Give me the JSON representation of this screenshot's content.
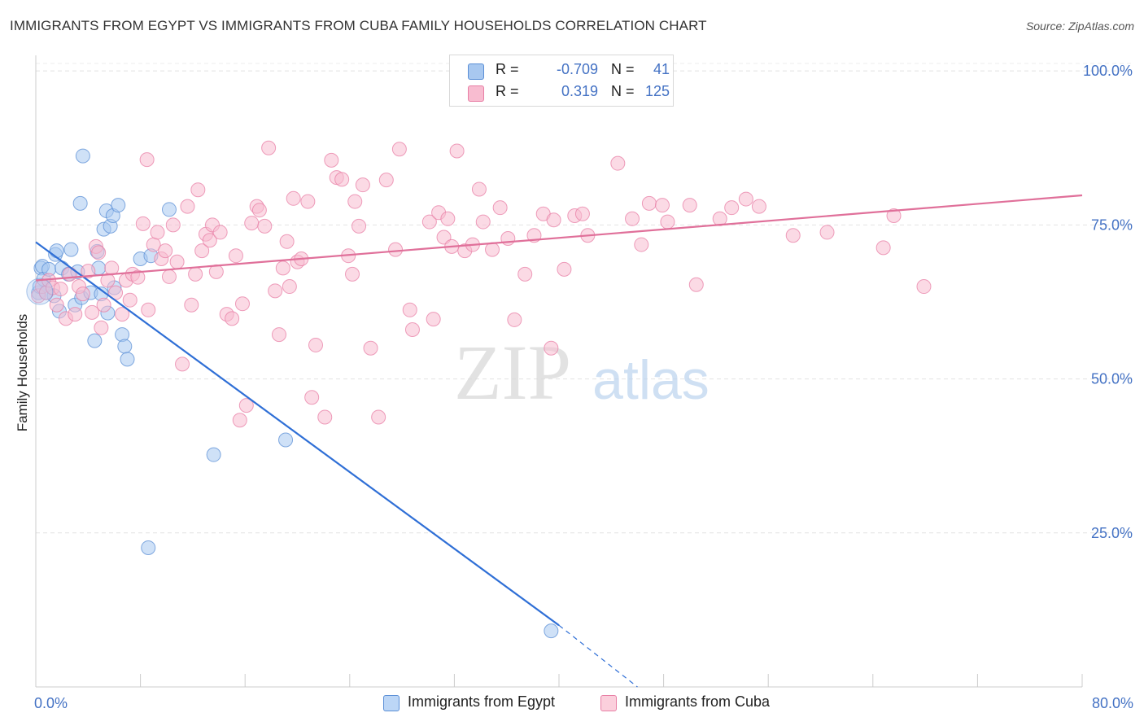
{
  "header": {
    "title": "IMMIGRANTS FROM EGYPT VS IMMIGRANTS FROM CUBA FAMILY HOUSEHOLDS CORRELATION CHART",
    "source": "Source: ZipAtlas.com"
  },
  "watermark": {
    "zip": "ZIP",
    "atlas": "atlas"
  },
  "legend": {
    "rows": [
      {
        "r_label": "R =",
        "r_value": "-0.709",
        "n_label": "N =",
        "n_value": "41",
        "color": "#a8c8f0",
        "border": "#5b8fd6"
      },
      {
        "r_label": "R =",
        "r_value": "0.319",
        "n_label": "N =",
        "n_value": "125",
        "color": "#f8bcd0",
        "border": "#e87fa5"
      }
    ],
    "bottom": [
      {
        "label": "Immigrants from Egypt",
        "color": "#bcd6f6",
        "border": "#5b8fd6"
      },
      {
        "label": "Immigrants from Cuba",
        "color": "#fbcfdc",
        "border": "#e87fa5"
      }
    ]
  },
  "chart_data": {
    "type": "scatter",
    "title": "IMMIGRANTS FROM EGYPT VS IMMIGRANTS FROM CUBA FAMILY HOUSEHOLDS CORRELATION CHART",
    "xlabel": "",
    "ylabel": "Family Households",
    "xlim": [
      0,
      80
    ],
    "ylim": [
      0,
      102
    ],
    "x_tick_labels": [
      "0.0%",
      "80.0%"
    ],
    "y_ticks": [
      25,
      50,
      75,
      100
    ],
    "y_tick_labels": [
      "25.0%",
      "50.0%",
      "75.0%",
      "100.0%"
    ],
    "grid": true,
    "legend_position": "top-center",
    "series": [
      {
        "name": "Immigrants from Egypt",
        "color": "#5b8fd6",
        "fill": "#a8c8f0",
        "points": [
          [
            0.2,
            64.0
          ],
          [
            0.3,
            65.0
          ],
          [
            0.4,
            68.0
          ],
          [
            0.5,
            68.3
          ],
          [
            0.6,
            66.2
          ],
          [
            0.8,
            64.0
          ],
          [
            1.0,
            67.8
          ],
          [
            1.4,
            63.5
          ],
          [
            1.5,
            70.2
          ],
          [
            1.6,
            70.8
          ],
          [
            1.8,
            61.0
          ],
          [
            2.0,
            68.0
          ],
          [
            2.5,
            67.0
          ],
          [
            2.7,
            71.0
          ],
          [
            3.0,
            62.0
          ],
          [
            3.2,
            67.4
          ],
          [
            3.4,
            78.5
          ],
          [
            3.5,
            63.2
          ],
          [
            3.6,
            86.2
          ],
          [
            4.2,
            64.0
          ],
          [
            4.5,
            56.2
          ],
          [
            4.7,
            70.7
          ],
          [
            4.8,
            68.0
          ],
          [
            5.0,
            63.8
          ],
          [
            5.2,
            74.3
          ],
          [
            5.4,
            77.3
          ],
          [
            5.5,
            60.7
          ],
          [
            5.7,
            74.8
          ],
          [
            5.9,
            76.5
          ],
          [
            6.0,
            64.8
          ],
          [
            6.3,
            78.2
          ],
          [
            6.6,
            57.2
          ],
          [
            6.8,
            55.3
          ],
          [
            7.0,
            53.2
          ],
          [
            8.0,
            69.5
          ],
          [
            8.6,
            22.6
          ],
          [
            8.8,
            70.0
          ],
          [
            10.2,
            77.5
          ],
          [
            13.6,
            37.7
          ],
          [
            19.1,
            40.1
          ],
          [
            39.4,
            9.1
          ]
        ]
      },
      {
        "name": "Immigrants from Cuba",
        "color": "#e87fa5",
        "fill": "#f8bcd0",
        "points": [
          [
            0.2,
            63.5
          ],
          [
            0.5,
            65.0
          ],
          [
            0.8,
            64.0
          ],
          [
            1.0,
            66.0
          ],
          [
            1.3,
            64.8
          ],
          [
            1.6,
            62.0
          ],
          [
            1.9,
            64.6
          ],
          [
            2.3,
            59.8
          ],
          [
            2.6,
            67.0
          ],
          [
            3.0,
            60.5
          ],
          [
            3.3,
            65.0
          ],
          [
            3.6,
            63.8
          ],
          [
            4.0,
            67.5
          ],
          [
            4.3,
            60.8
          ],
          [
            4.6,
            71.5
          ],
          [
            4.8,
            70.5
          ],
          [
            5.0,
            58.3
          ],
          [
            5.2,
            62.0
          ],
          [
            5.5,
            66.0
          ],
          [
            5.8,
            68.0
          ],
          [
            6.1,
            64.0
          ],
          [
            6.6,
            60.5
          ],
          [
            6.9,
            66.0
          ],
          [
            7.2,
            62.8
          ],
          [
            7.4,
            67.0
          ],
          [
            7.8,
            66.5
          ],
          [
            8.2,
            75.2
          ],
          [
            8.5,
            85.6
          ],
          [
            8.6,
            61.2
          ],
          [
            9.0,
            71.8
          ],
          [
            9.3,
            73.8
          ],
          [
            9.6,
            69.5
          ],
          [
            9.9,
            70.8
          ],
          [
            10.2,
            66.6
          ],
          [
            10.5,
            75.0
          ],
          [
            10.8,
            69.0
          ],
          [
            11.2,
            52.4
          ],
          [
            11.6,
            78.0
          ],
          [
            11.9,
            62.0
          ],
          [
            12.2,
            67.0
          ],
          [
            12.4,
            80.7
          ],
          [
            12.7,
            70.8
          ],
          [
            13.0,
            73.5
          ],
          [
            13.3,
            72.5
          ],
          [
            13.5,
            75.0
          ],
          [
            13.8,
            67.4
          ],
          [
            14.1,
            73.8
          ],
          [
            14.6,
            60.5
          ],
          [
            15.0,
            59.8
          ],
          [
            15.3,
            70.0
          ],
          [
            15.6,
            43.3
          ],
          [
            15.8,
            62.2
          ],
          [
            16.1,
            45.7
          ],
          [
            16.5,
            75.3
          ],
          [
            16.9,
            78.0
          ],
          [
            17.1,
            77.4
          ],
          [
            17.5,
            74.8
          ],
          [
            17.8,
            87.5
          ],
          [
            18.3,
            64.3
          ],
          [
            18.6,
            57.2
          ],
          [
            18.9,
            68.0
          ],
          [
            19.2,
            72.3
          ],
          [
            19.4,
            65.0
          ],
          [
            19.7,
            79.3
          ],
          [
            20.0,
            69.0
          ],
          [
            20.3,
            69.5
          ],
          [
            20.8,
            78.8
          ],
          [
            21.1,
            47.0
          ],
          [
            21.4,
            55.5
          ],
          [
            22.1,
            43.8
          ],
          [
            22.6,
            85.5
          ],
          [
            23.0,
            82.7
          ],
          [
            23.4,
            82.4
          ],
          [
            23.9,
            70.0
          ],
          [
            24.2,
            67.0
          ],
          [
            24.4,
            78.8
          ],
          [
            24.7,
            74.8
          ],
          [
            25.0,
            81.5
          ],
          [
            25.6,
            55.0
          ],
          [
            26.2,
            43.8
          ],
          [
            26.8,
            82.3
          ],
          [
            27.5,
            71.0
          ],
          [
            27.8,
            87.3
          ],
          [
            28.6,
            61.2
          ],
          [
            28.8,
            58.0
          ],
          [
            30.1,
            75.5
          ],
          [
            30.4,
            59.7
          ],
          [
            30.8,
            77.0
          ],
          [
            31.2,
            73.0
          ],
          [
            31.5,
            76.0
          ],
          [
            31.8,
            71.5
          ],
          [
            32.2,
            87.0
          ],
          [
            32.8,
            70.8
          ],
          [
            33.4,
            71.8
          ],
          [
            33.9,
            80.8
          ],
          [
            34.2,
            75.5
          ],
          [
            34.9,
            71.0
          ],
          [
            35.5,
            77.8
          ],
          [
            36.1,
            72.8
          ],
          [
            36.6,
            59.6
          ],
          [
            37.4,
            67.0
          ],
          [
            38.1,
            73.3
          ],
          [
            38.8,
            76.8
          ],
          [
            39.4,
            55.0
          ],
          [
            39.6,
            75.8
          ],
          [
            40.4,
            67.8
          ],
          [
            41.2,
            76.5
          ],
          [
            41.8,
            76.8
          ],
          [
            42.2,
            73.3
          ],
          [
            44.5,
            85.0
          ],
          [
            45.6,
            76.0
          ],
          [
            46.3,
            71.8
          ],
          [
            46.9,
            78.5
          ],
          [
            47.9,
            78.2
          ],
          [
            48.3,
            75.5
          ],
          [
            50.0,
            78.2
          ],
          [
            50.5,
            65.3
          ],
          [
            52.3,
            76.0
          ],
          [
            53.2,
            77.8
          ],
          [
            54.3,
            79.2
          ],
          [
            55.3,
            78.0
          ],
          [
            57.9,
            73.3
          ],
          [
            60.5,
            73.8
          ],
          [
            64.8,
            71.3
          ],
          [
            65.6,
            76.5
          ],
          [
            67.9,
            65.0
          ]
        ]
      }
    ],
    "trend_lines": [
      {
        "series": "Immigrants from Egypt",
        "solid": [
          [
            0,
            72.2
          ],
          [
            40,
            10.0
          ]
        ],
        "dashed": [
          [
            40,
            10.0
          ],
          [
            46,
            0.0
          ]
        ],
        "color": "#2f6fd6"
      },
      {
        "series": "Immigrants from Cuba",
        "solid": [
          [
            0,
            66.0
          ],
          [
            80,
            79.8
          ]
        ],
        "color": "#e0709a"
      }
    ]
  }
}
